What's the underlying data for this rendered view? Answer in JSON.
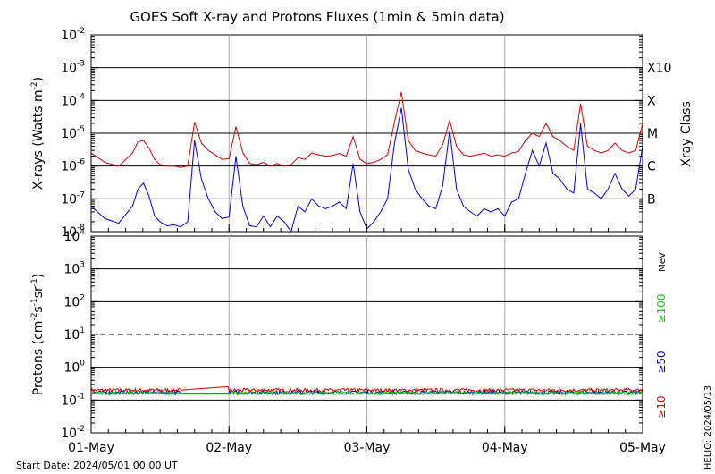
{
  "chart_data": [
    {
      "type": "line",
      "title": "GOES Soft X-ray and Protons Fluxes   (1min & 5min data)",
      "ylabel_main": "X-rays (Watts m",
      "ylabel_sup": "-2",
      "ylabel_close": ")",
      "yscale": "log",
      "ylim": [
        1e-08,
        0.01
      ],
      "y_tick_bases": [
        "10",
        "10",
        "10",
        "10",
        "10",
        "10",
        "10"
      ],
      "y_tick_exps": [
        "-8",
        "-7",
        "-6",
        "-5",
        "-4",
        "-3",
        "-2"
      ],
      "y_tick_values": [
        1e-08,
        1e-07,
        1e-06,
        1e-05,
        0.0001,
        0.001,
        0.01
      ],
      "right_axis_label": "Xray Class",
      "class_labels": [
        "B",
        "C",
        "M",
        "X",
        "X10"
      ],
      "class_values": [
        1e-07,
        1e-06,
        1e-05,
        0.0001,
        0.001
      ],
      "grid": true,
      "series": [
        {
          "color": "#dd0000",
          "x": [
            0.0,
            0.1,
            0.2,
            0.3,
            0.34,
            0.38,
            0.42,
            0.46,
            0.5,
            0.55,
            0.6,
            0.65,
            0.7,
            0.75,
            0.8,
            0.85,
            0.9,
            0.95,
            1.0,
            1.05,
            1.1,
            1.15,
            1.2,
            1.25,
            1.3,
            1.35,
            1.4,
            1.45,
            1.5,
            1.55,
            1.6,
            1.65,
            1.7,
            1.75,
            1.8,
            1.85,
            1.9,
            1.95,
            2.0,
            2.05,
            2.1,
            2.15,
            2.2,
            2.25,
            2.3,
            2.35,
            2.4,
            2.45,
            2.5,
            2.55,
            2.6,
            2.65,
            2.7,
            2.75,
            2.8,
            2.85,
            2.9,
            2.95,
            3.0,
            3.05,
            3.1,
            3.15,
            3.2,
            3.25,
            3.3,
            3.35,
            3.4,
            3.45,
            3.5,
            3.55,
            3.6,
            3.65,
            3.7,
            3.75,
            3.8,
            3.85,
            3.9,
            3.95,
            4.0
          ],
          "y": [
            2.5e-06,
            1.3e-06,
            1e-06,
            2.5e-06,
            5.5e-06,
            6e-06,
            3.5e-06,
            1.6e-06,
            1.1e-06,
            1e-06,
            1e-06,
            9e-07,
            1e-06,
            2.2e-05,
            5e-06,
            3e-06,
            2.2e-06,
            1.6e-06,
            1.7e-06,
            1.6e-05,
            2.6e-06,
            1.2e-06,
            1.1e-06,
            1.3e-06,
            1e-06,
            1.2e-06,
            1e-06,
            1.1e-06,
            1.8e-06,
            1.6e-06,
            2.5e-06,
            2.2e-06,
            2e-06,
            2.1e-06,
            2.4e-06,
            2e-06,
            8e-06,
            1.6e-06,
            1.2e-06,
            1.3e-06,
            1.6e-06,
            2.2e-06,
            2.2e-05,
            0.00018,
            6e-06,
            3e-06,
            2.5e-06,
            2.2e-06,
            2e-06,
            4.5e-06,
            2.5e-05,
            4e-06,
            2.2e-06,
            2e-06,
            2.2e-06,
            2.5e-06,
            2e-06,
            2.2e-06,
            2e-06,
            2.5e-06,
            2.8e-06,
            6e-06,
            1e-05,
            8e-06,
            2e-05,
            8e-06,
            6e-06,
            4e-06,
            3e-06,
            8e-05,
            4e-06,
            3e-06,
            2.5e-06,
            3e-06,
            5e-06,
            3e-06,
            2.5e-06,
            3e-06,
            2e-05
          ]
        },
        {
          "color": "#0000dd",
          "x": [
            0.0,
            0.1,
            0.2,
            0.3,
            0.34,
            0.38,
            0.42,
            0.46,
            0.5,
            0.55,
            0.6,
            0.65,
            0.7,
            0.75,
            0.8,
            0.85,
            0.9,
            0.95,
            1.0,
            1.05,
            1.1,
            1.15,
            1.2,
            1.25,
            1.3,
            1.35,
            1.4,
            1.45,
            1.5,
            1.55,
            1.6,
            1.65,
            1.7,
            1.75,
            1.8,
            1.85,
            1.9,
            1.95,
            2.0,
            2.05,
            2.1,
            2.15,
            2.2,
            2.25,
            2.3,
            2.35,
            2.4,
            2.45,
            2.5,
            2.55,
            2.6,
            2.65,
            2.7,
            2.75,
            2.8,
            2.85,
            2.9,
            2.95,
            3.0,
            3.05,
            3.1,
            3.15,
            3.2,
            3.25,
            3.3,
            3.35,
            3.4,
            3.45,
            3.5,
            3.55,
            3.6,
            3.65,
            3.7,
            3.75,
            3.8,
            3.85,
            3.9,
            3.95,
            4.0
          ],
          "y": [
            6e-08,
            2.5e-08,
            1.8e-08,
            6e-08,
            2e-07,
            3e-07,
            1.2e-07,
            3e-08,
            2e-08,
            1.5e-08,
            1.6e-08,
            1.4e-08,
            2e-08,
            6e-06,
            4e-07,
            1e-07,
            4e-08,
            2.5e-08,
            2.8e-08,
            2e-06,
            6e-08,
            1.5e-08,
            1.4e-08,
            3e-08,
            1.4e-08,
            3e-08,
            2e-08,
            1e-08,
            6e-08,
            4e-08,
            1e-07,
            6e-08,
            5e-08,
            6e-08,
            8e-08,
            5e-08,
            1.2e-06,
            4e-08,
            1.2e-08,
            2e-08,
            4e-08,
            1e-07,
            5e-06,
            6e-05,
            8e-07,
            2e-07,
            1e-07,
            6e-08,
            5e-08,
            2.5e-07,
            1.2e-05,
            2e-07,
            6e-08,
            4e-08,
            3e-08,
            5e-08,
            4e-08,
            5e-08,
            3e-08,
            8e-08,
            1e-07,
            6e-07,
            3e-06,
            1e-06,
            5e-06,
            6e-07,
            4e-07,
            2e-07,
            1.5e-07,
            2e-05,
            2e-07,
            1.5e-07,
            1e-07,
            2e-07,
            6e-07,
            2e-07,
            1.2e-07,
            2e-07,
            4e-06
          ]
        }
      ],
      "gaps": [
        [
          0.0,
          0.0
        ]
      ]
    },
    {
      "type": "line",
      "ylabel_main": "Protons (cm",
      "ylabel_sup1": "-2",
      "ylabel_mid1": "s",
      "ylabel_sup2": "-1",
      "ylabel_mid2": "sr",
      "ylabel_sup3": "-1",
      "ylabel_close": ")",
      "yscale": "log",
      "ylim": [
        0.01,
        10000
      ],
      "y_tick_bases": [
        "10",
        "10",
        "10",
        "10",
        "10",
        "10",
        "10"
      ],
      "y_tick_exps": [
        "-2",
        "-1",
        "0",
        "1",
        "2",
        "3",
        "4"
      ],
      "y_tick_values": [
        0.01,
        0.1,
        1,
        10,
        100,
        1000,
        10000
      ],
      "dashed_level": 10,
      "energy_unit": "MeV",
      "energy_labels": [
        {
          "text": "≥100",
          "color": "#00cc00"
        },
        {
          "text": "≥50",
          "color": "#0000dd"
        },
        {
          "text": "≥10",
          "color": "#dd0000"
        }
      ],
      "series": [
        {
          "name": "≥10",
          "color": "#dd0000",
          "base": 0.2
        },
        {
          "name": "≥50",
          "color": "#0000dd",
          "base": 0.17
        },
        {
          "name": "≥100",
          "color": "#00cc00",
          "base": 0.165
        }
      ],
      "x_tick_labels": [
        "01-May",
        "02-May",
        "03-May",
        "04-May",
        "05-May"
      ],
      "x_range_days": [
        0,
        4
      ]
    }
  ],
  "footer": {
    "start_date": "Start Date: 2024/05/01 00:00 UT",
    "helio": "HELIO: 2024/05/13"
  }
}
